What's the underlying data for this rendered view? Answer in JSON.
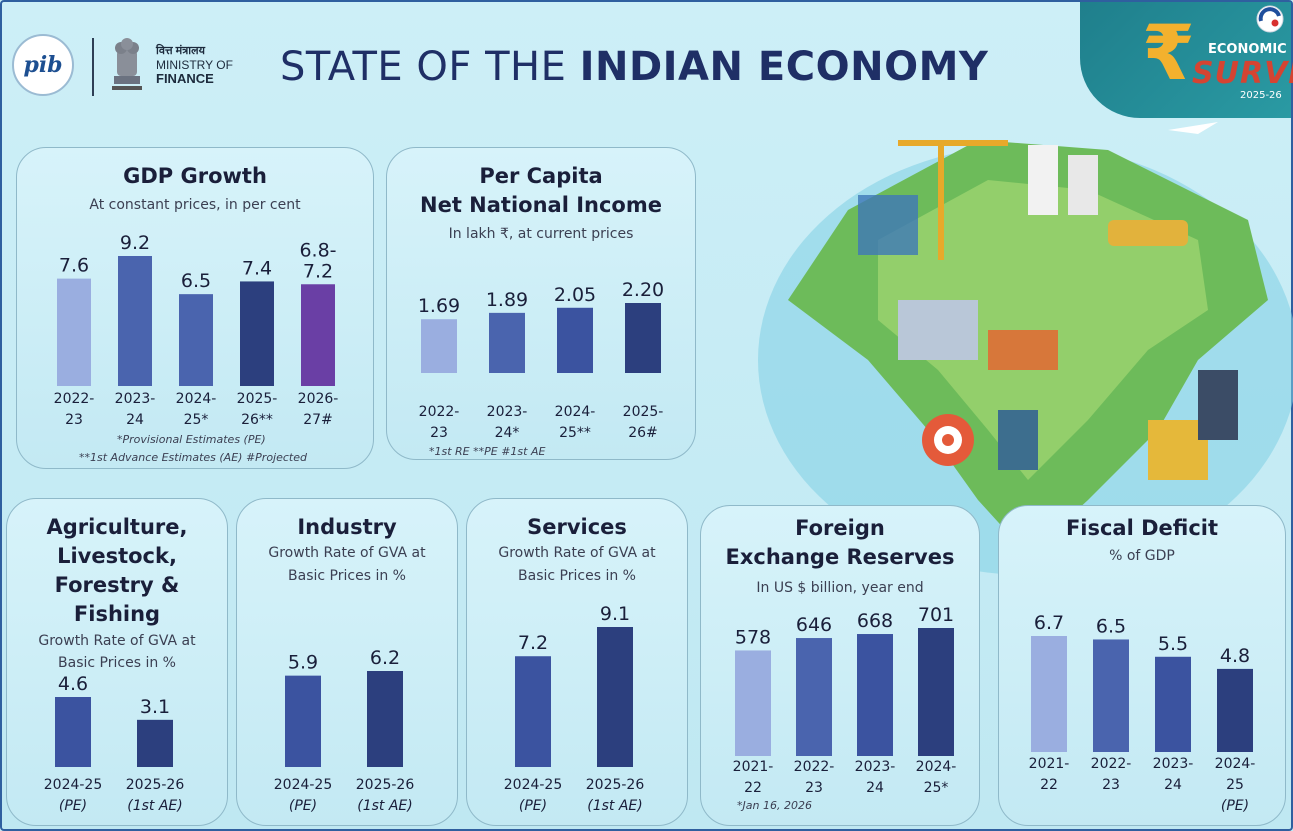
{
  "header": {
    "pib_logo_text": "pib",
    "ministry_hindi": "वित्त मंत्रालय",
    "ministry_line1": "MINISTRY OF",
    "ministry_line2": "FINANCE",
    "title_light": "STATE OF THE",
    "title_bold": "INDIAN ECONOMY"
  },
  "badge": {
    "symbol": "₹",
    "line1": "ECONOMIC",
    "line2": "SURVEY",
    "line3": "2025-26"
  },
  "colors": {
    "bar_light": "#9aaee0",
    "bar_mid": "#4a64ae",
    "bar_dark": "#2c3f7e",
    "bar_purple": "#6a3fa5"
  },
  "cards": {
    "gdp": {
      "title": "GDP Growth",
      "subtitle": "At constant prices, in per cent",
      "note1": "*Provisional Estimates (PE)",
      "note2": "**1st Advance Estimates (AE) #Projected"
    },
    "pcni": {
      "title1": "Per Capita",
      "title2": "Net National Income",
      "subtitle": "In lakh ₹, at current prices",
      "note": "*1st RE   **PE  #1st AE"
    },
    "agri": {
      "title1": "Agriculture,",
      "title2": "Livestock,",
      "title3": "Forestry &",
      "title4": "Fishing",
      "subtitle1": "Growth Rate of GVA at",
      "subtitle2": "Basic Prices in %"
    },
    "industry": {
      "title": "Industry",
      "subtitle1": "Growth Rate of GVA at",
      "subtitle2": "Basic Prices in %"
    },
    "services": {
      "title": "Services",
      "subtitle1": "Growth Rate of GVA at",
      "subtitle2": "Basic Prices in %"
    },
    "forex": {
      "title1": "Foreign",
      "title2": "Exchange Reserves",
      "subtitle": "In US $ billion, year end",
      "note": "*Jan 16, 2026"
    },
    "fiscal": {
      "title": "Fiscal Deficit",
      "subtitle": "% of GDP"
    }
  },
  "chart_data": [
    {
      "id": "gdp",
      "type": "bar",
      "title": "GDP Growth",
      "subtitle": "At constant prices, in per cent",
      "categories": [
        [
          "2022-",
          "23"
        ],
        [
          "2023-",
          "24"
        ],
        [
          "2024-",
          "25*"
        ],
        [
          "2025-",
          "26**"
        ],
        [
          "2026-",
          "27#"
        ]
      ],
      "values": [
        7.6,
        9.2,
        6.5,
        7.4,
        7.2
      ],
      "value_labels": [
        [
          "7.6"
        ],
        [
          "9.2"
        ],
        [
          "6.5"
        ],
        [
          "7.4"
        ],
        [
          "6.8-",
          "7.2"
        ]
      ],
      "range_low_last": 6.8,
      "colors": [
        "#9aaee0",
        "#4a64ae",
        "#4a64ae",
        "#2c3f7e",
        "#6a3fa5"
      ],
      "ylim": [
        0,
        9.2
      ]
    },
    {
      "id": "pcni",
      "type": "bar",
      "title": "Per Capita Net National Income",
      "subtitle": "In lakh ₹, at current prices",
      "categories": [
        [
          "2022-",
          "23"
        ],
        [
          "2023-",
          "24*"
        ],
        [
          "2024-",
          "25**"
        ],
        [
          "2025-",
          "26#"
        ]
      ],
      "values": [
        1.69,
        1.89,
        2.05,
        2.2
      ],
      "value_labels": [
        [
          "1.69"
        ],
        [
          "1.89"
        ],
        [
          "2.05"
        ],
        [
          "2.20"
        ]
      ],
      "colors": [
        "#9aaee0",
        "#4a64ae",
        "#3b53a0",
        "#2c3f7e"
      ],
      "ylim": [
        0,
        2.2
      ]
    },
    {
      "id": "agri",
      "type": "bar",
      "title": "Agriculture, Livestock, Forestry & Fishing",
      "subtitle": "Growth Rate of GVA at Basic Prices in %",
      "categories": [
        [
          "2024-25",
          "(PE)"
        ],
        [
          "2025-26",
          "(1st AE)"
        ]
      ],
      "values": [
        4.6,
        3.1
      ],
      "value_labels": [
        [
          "4.6"
        ],
        [
          "3.1"
        ]
      ],
      "colors": [
        "#3b53a0",
        "#2c3f7e"
      ],
      "ylim": [
        0,
        4.6
      ]
    },
    {
      "id": "industry",
      "type": "bar",
      "title": "Industry",
      "subtitle": "Growth Rate of GVA at Basic Prices in %",
      "categories": [
        [
          "2024-25",
          "(PE)"
        ],
        [
          "2025-26",
          "(1st AE)"
        ]
      ],
      "values": [
        5.9,
        6.2
      ],
      "value_labels": [
        [
          "5.9"
        ],
        [
          "6.2"
        ]
      ],
      "colors": [
        "#3b53a0",
        "#2c3f7e"
      ],
      "ylim": [
        0,
        6.2
      ]
    },
    {
      "id": "services",
      "type": "bar",
      "title": "Services",
      "subtitle": "Growth Rate of GVA at Basic Prices in %",
      "categories": [
        [
          "2024-25",
          "(PE)"
        ],
        [
          "2025-26",
          "(1st AE)"
        ]
      ],
      "values": [
        7.2,
        9.1
      ],
      "value_labels": [
        [
          "7.2"
        ],
        [
          "9.1"
        ]
      ],
      "colors": [
        "#3b53a0",
        "#2c3f7e"
      ],
      "ylim": [
        0,
        9.1
      ]
    },
    {
      "id": "forex",
      "type": "bar",
      "title": "Foreign Exchange Reserves",
      "subtitle": "In US $ billion, year end",
      "categories": [
        [
          "2021-",
          "22"
        ],
        [
          "2022-",
          "23"
        ],
        [
          "2023-",
          "24"
        ],
        [
          "2024-",
          "25*"
        ]
      ],
      "values": [
        578,
        646,
        668,
        701
      ],
      "value_labels": [
        [
          "578"
        ],
        [
          "646"
        ],
        [
          "668"
        ],
        [
          "701"
        ]
      ],
      "colors": [
        "#9aaee0",
        "#4a64ae",
        "#3b53a0",
        "#2c3f7e"
      ],
      "ylim": [
        0,
        701
      ]
    },
    {
      "id": "fiscal",
      "type": "bar",
      "title": "Fiscal Deficit",
      "subtitle": "% of GDP",
      "categories": [
        [
          "2021-",
          "22"
        ],
        [
          "2022-",
          "23"
        ],
        [
          "2023-",
          "24"
        ],
        [
          "2024-",
          "25",
          "(PE)"
        ]
      ],
      "values": [
        6.7,
        6.5,
        5.5,
        4.8
      ],
      "value_labels": [
        [
          "6.7"
        ],
        [
          "6.5"
        ],
        [
          "5.5"
        ],
        [
          "4.8"
        ]
      ],
      "colors": [
        "#9aaee0",
        "#4a64ae",
        "#3b53a0",
        "#2c3f7e"
      ],
      "ylim": [
        0,
        6.7
      ]
    }
  ]
}
